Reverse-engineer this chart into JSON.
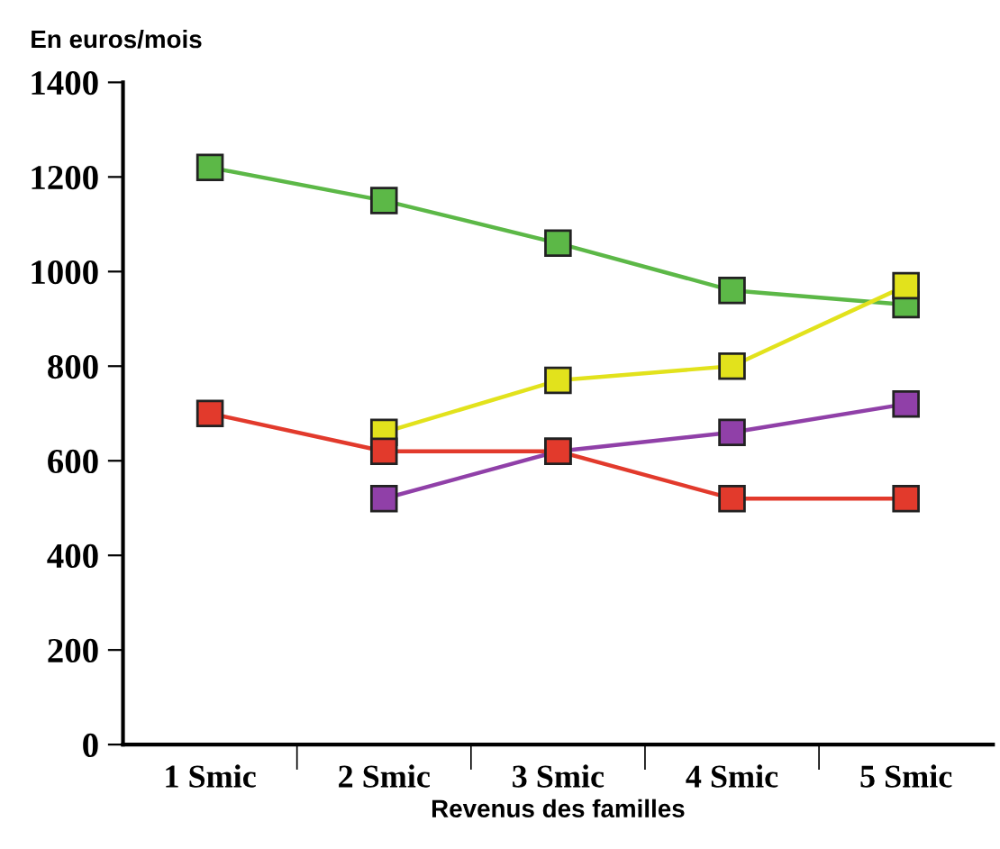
{
  "chart_data": {
    "type": "line",
    "ylabel": "En euros/mois",
    "xlabel": "Revenus des familles",
    "categories": [
      "1 Smic",
      "2 Smic",
      "3 Smic",
      "4 Smic",
      "5 Smic"
    ],
    "series": [
      {
        "color": "#5cb847",
        "values": [
          1220,
          1150,
          1060,
          960,
          930
        ]
      },
      {
        "color": "#e2e21c",
        "values": [
          null,
          660,
          770,
          800,
          970
        ]
      },
      {
        "color": "#9040a8",
        "values": [
          null,
          520,
          620,
          660,
          720
        ]
      },
      {
        "color": "#e23a2c",
        "values": [
          700,
          620,
          620,
          520,
          520
        ]
      }
    ],
    "ylim": [
      0,
      1400
    ],
    "yticks": [
      0,
      200,
      400,
      600,
      800,
      1000,
      1200,
      1400
    ],
    "marker": "square",
    "line_style": "solid",
    "grid": false,
    "legend": false
  }
}
